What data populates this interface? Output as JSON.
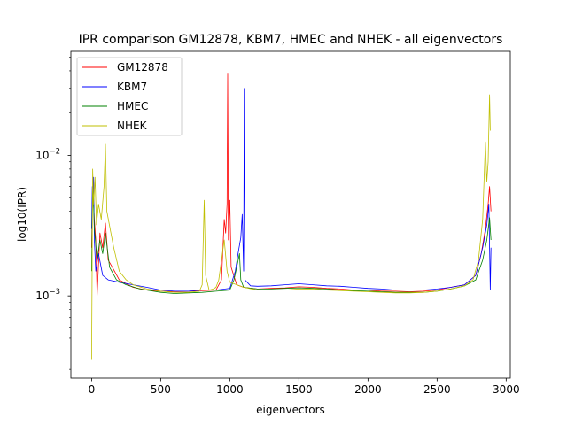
{
  "chart_data": {
    "type": "line",
    "title": "IPR comparison GM12878, KBM7, HMEC and NHEK - all eigenvectors",
    "xlabel": "eigenvectors",
    "ylabel": "log10(IPR)",
    "yscale": "log",
    "xlim": [
      -150,
      3030
    ],
    "ylim": [
      0.00026,
      0.055
    ],
    "xticks": [
      0,
      500,
      1000,
      1500,
      2000,
      2500,
      3000
    ],
    "xtick_labels": [
      "0",
      "500",
      "1000",
      "1500",
      "2000",
      "2500",
      "3000"
    ],
    "ytick_labels": [
      {
        "base": "10",
        "exp": "−3",
        "value": 0.001
      },
      {
        "base": "10",
        "exp": "−2",
        "value": 0.01
      }
    ],
    "grid": false,
    "legend_position": "upper-left",
    "series": [
      {
        "name": "GM12878",
        "color": "#ff0000",
        "points": [
          [
            0,
            0.0022
          ],
          [
            5,
            0.0042
          ],
          [
            10,
            0.0055
          ],
          [
            20,
            0.0035
          ],
          [
            30,
            0.0025
          ],
          [
            40,
            0.001
          ],
          [
            60,
            0.0028
          ],
          [
            80,
            0.0022
          ],
          [
            100,
            0.0033
          ],
          [
            120,
            0.0018
          ],
          [
            150,
            0.0016
          ],
          [
            200,
            0.0013
          ],
          [
            300,
            0.00115
          ],
          [
            400,
            0.0011
          ],
          [
            500,
            0.00108
          ],
          [
            600,
            0.00107
          ],
          [
            700,
            0.00108
          ],
          [
            800,
            0.00109
          ],
          [
            900,
            0.0011
          ],
          [
            940,
            0.0013
          ],
          [
            960,
            0.0035
          ],
          [
            970,
            0.0028
          ],
          [
            980,
            0.0045
          ],
          [
            985,
            0.038
          ],
          [
            990,
            0.0025
          ],
          [
            1000,
            0.0048
          ],
          [
            1010,
            0.0016
          ],
          [
            1050,
            0.0012
          ],
          [
            1100,
            0.00115
          ],
          [
            1200,
            0.00112
          ],
          [
            1300,
            0.00113
          ],
          [
            1400,
            0.00114
          ],
          [
            1500,
            0.00116
          ],
          [
            1600,
            0.00115
          ],
          [
            1700,
            0.00113
          ],
          [
            1800,
            0.00112
          ],
          [
            1900,
            0.0011
          ],
          [
            2000,
            0.0011
          ],
          [
            2100,
            0.00108
          ],
          [
            2200,
            0.00108
          ],
          [
            2300,
            0.00107
          ],
          [
            2400,
            0.00108
          ],
          [
            2500,
            0.0011
          ],
          [
            2600,
            0.00115
          ],
          [
            2700,
            0.0012
          ],
          [
            2780,
            0.0014
          ],
          [
            2820,
            0.002
          ],
          [
            2850,
            0.003
          ],
          [
            2870,
            0.0045
          ],
          [
            2880,
            0.006
          ],
          [
            2890,
            0.004
          ]
        ]
      },
      {
        "name": "KBM7",
        "color": "#0000ff",
        "points": [
          [
            0,
            0.003
          ],
          [
            5,
            0.006
          ],
          [
            10,
            0.005
          ],
          [
            15,
            0.007
          ],
          [
            20,
            0.0025
          ],
          [
            30,
            0.0015
          ],
          [
            50,
            0.002
          ],
          [
            80,
            0.0014
          ],
          [
            120,
            0.0013
          ],
          [
            200,
            0.00125
          ],
          [
            300,
            0.0012
          ],
          [
            400,
            0.00115
          ],
          [
            500,
            0.0011
          ],
          [
            600,
            0.00108
          ],
          [
            700,
            0.00108
          ],
          [
            800,
            0.0011
          ],
          [
            900,
            0.0011
          ],
          [
            1000,
            0.00113
          ],
          [
            1040,
            0.0015
          ],
          [
            1060,
            0.002
          ],
          [
            1080,
            0.0026
          ],
          [
            1090,
            0.0038
          ],
          [
            1100,
            0.0015
          ],
          [
            1105,
            0.03
          ],
          [
            1110,
            0.0013
          ],
          [
            1150,
            0.00118
          ],
          [
            1200,
            0.00117
          ],
          [
            1300,
            0.00118
          ],
          [
            1400,
            0.0012
          ],
          [
            1500,
            0.00122
          ],
          [
            1600,
            0.0012
          ],
          [
            1700,
            0.00118
          ],
          [
            1800,
            0.00117
          ],
          [
            1900,
            0.00115
          ],
          [
            2000,
            0.00113
          ],
          [
            2100,
            0.00112
          ],
          [
            2200,
            0.0011
          ],
          [
            2300,
            0.0011
          ],
          [
            2400,
            0.0011
          ],
          [
            2500,
            0.00112
          ],
          [
            2600,
            0.00115
          ],
          [
            2700,
            0.0012
          ],
          [
            2780,
            0.0014
          ],
          [
            2830,
            0.0022
          ],
          [
            2860,
            0.0032
          ],
          [
            2875,
            0.0045
          ],
          [
            2885,
            0.0011
          ],
          [
            2890,
            0.0022
          ]
        ]
      },
      {
        "name": "HMEC",
        "color": "#008000",
        "points": [
          [
            0,
            0.0015
          ],
          [
            5,
            0.004
          ],
          [
            10,
            0.006
          ],
          [
            20,
            0.003
          ],
          [
            40,
            0.0018
          ],
          [
            60,
            0.0025
          ],
          [
            80,
            0.002
          ],
          [
            100,
            0.0028
          ],
          [
            130,
            0.0016
          ],
          [
            180,
            0.0013
          ],
          [
            250,
            0.0012
          ],
          [
            350,
            0.00112
          ],
          [
            500,
            0.00106
          ],
          [
            600,
            0.00104
          ],
          [
            700,
            0.00105
          ],
          [
            800,
            0.00106
          ],
          [
            900,
            0.00108
          ],
          [
            1000,
            0.0011
          ],
          [
            1030,
            0.0013
          ],
          [
            1050,
            0.0016
          ],
          [
            1070,
            0.002
          ],
          [
            1080,
            0.0013
          ],
          [
            1100,
            0.00115
          ],
          [
            1200,
            0.00112
          ],
          [
            1300,
            0.00112
          ],
          [
            1400,
            0.00113
          ],
          [
            1500,
            0.00114
          ],
          [
            1600,
            0.00113
          ],
          [
            1700,
            0.00112
          ],
          [
            1800,
            0.0011
          ],
          [
            1900,
            0.00109
          ],
          [
            2000,
            0.00108
          ],
          [
            2100,
            0.00107
          ],
          [
            2200,
            0.00106
          ],
          [
            2300,
            0.00106
          ],
          [
            2400,
            0.00106
          ],
          [
            2500,
            0.00108
          ],
          [
            2600,
            0.00112
          ],
          [
            2700,
            0.00118
          ],
          [
            2780,
            0.0013
          ],
          [
            2830,
            0.0018
          ],
          [
            2860,
            0.0025
          ],
          [
            2880,
            0.0036
          ],
          [
            2890,
            0.0025
          ]
        ]
      },
      {
        "name": "NHEK",
        "color": "#bfbf00",
        "points": [
          [
            0,
            0.00035
          ],
          [
            3,
            0.0012
          ],
          [
            8,
            0.008
          ],
          [
            15,
            0.0045
          ],
          [
            25,
            0.007
          ],
          [
            35,
            0.0032
          ],
          [
            50,
            0.0045
          ],
          [
            70,
            0.0035
          ],
          [
            90,
            0.006
          ],
          [
            100,
            0.012
          ],
          [
            110,
            0.004
          ],
          [
            140,
            0.0028
          ],
          [
            160,
            0.0022
          ],
          [
            200,
            0.0015
          ],
          [
            250,
            0.0013
          ],
          [
            300,
            0.0012
          ],
          [
            400,
            0.00112
          ],
          [
            500,
            0.00108
          ],
          [
            600,
            0.00106
          ],
          [
            700,
            0.00106
          ],
          [
            780,
            0.00108
          ],
          [
            800,
            0.0012
          ],
          [
            815,
            0.0048
          ],
          [
            825,
            0.0014
          ],
          [
            850,
            0.0011
          ],
          [
            880,
            0.00112
          ],
          [
            900,
            0.00115
          ],
          [
            920,
            0.0013
          ],
          [
            960,
            0.0025
          ],
          [
            980,
            0.0015
          ],
          [
            1000,
            0.00125
          ],
          [
            1050,
            0.0012
          ],
          [
            1100,
            0.00115
          ],
          [
            1200,
            0.0011
          ],
          [
            1300,
            0.0011
          ],
          [
            1400,
            0.0011
          ],
          [
            1500,
            0.00112
          ],
          [
            1600,
            0.00112
          ],
          [
            1700,
            0.0011
          ],
          [
            1800,
            0.00109
          ],
          [
            1900,
            0.00108
          ],
          [
            2000,
            0.00107
          ],
          [
            2100,
            0.00106
          ],
          [
            2200,
            0.00105
          ],
          [
            2300,
            0.00105
          ],
          [
            2400,
            0.00106
          ],
          [
            2500,
            0.00108
          ],
          [
            2600,
            0.00112
          ],
          [
            2700,
            0.00118
          ],
          [
            2760,
            0.0013
          ],
          [
            2800,
            0.0018
          ],
          [
            2830,
            0.0035
          ],
          [
            2850,
            0.0125
          ],
          [
            2860,
            0.0065
          ],
          [
            2870,
            0.009
          ],
          [
            2880,
            0.027
          ],
          [
            2885,
            0.015
          ]
        ]
      }
    ]
  }
}
